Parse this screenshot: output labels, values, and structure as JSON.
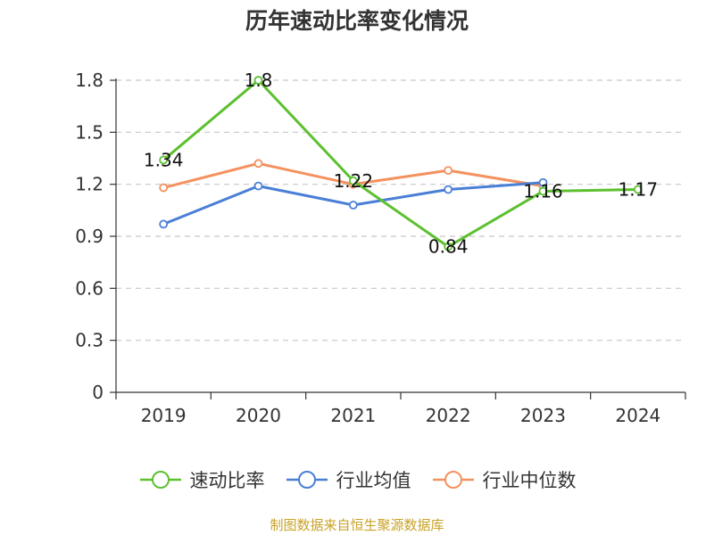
{
  "chart_data": {
    "type": "line",
    "title": "历年速动比率变化情况",
    "categories": [
      "2019",
      "2020",
      "2021",
      "2022",
      "2023",
      "2024"
    ],
    "ylim": [
      0,
      1.8
    ],
    "yticks": [
      "0",
      "0.3",
      "0.6",
      "0.9",
      "1.2",
      "1.5",
      "1.8"
    ],
    "grid": true,
    "legend_position": "bottom",
    "series": [
      {
        "name": "速动比率",
        "color": "#5cc02f",
        "values": [
          1.34,
          1.8,
          1.22,
          0.84,
          1.16,
          1.17
        ],
        "labels": [
          "1.34",
          "1.8",
          "1.22",
          "0.84",
          "1.16",
          "1.17"
        ]
      },
      {
        "name": "行业均值",
        "color": "#4a7fd6",
        "values": [
          0.97,
          1.19,
          1.08,
          1.17,
          1.21,
          null
        ]
      },
      {
        "name": "行业中位数",
        "color": "#f4915e",
        "values": [
          1.18,
          1.32,
          1.2,
          1.28,
          1.19,
          null
        ]
      }
    ]
  },
  "footer": {
    "source": "制图数据来自恒生聚源数据库"
  }
}
